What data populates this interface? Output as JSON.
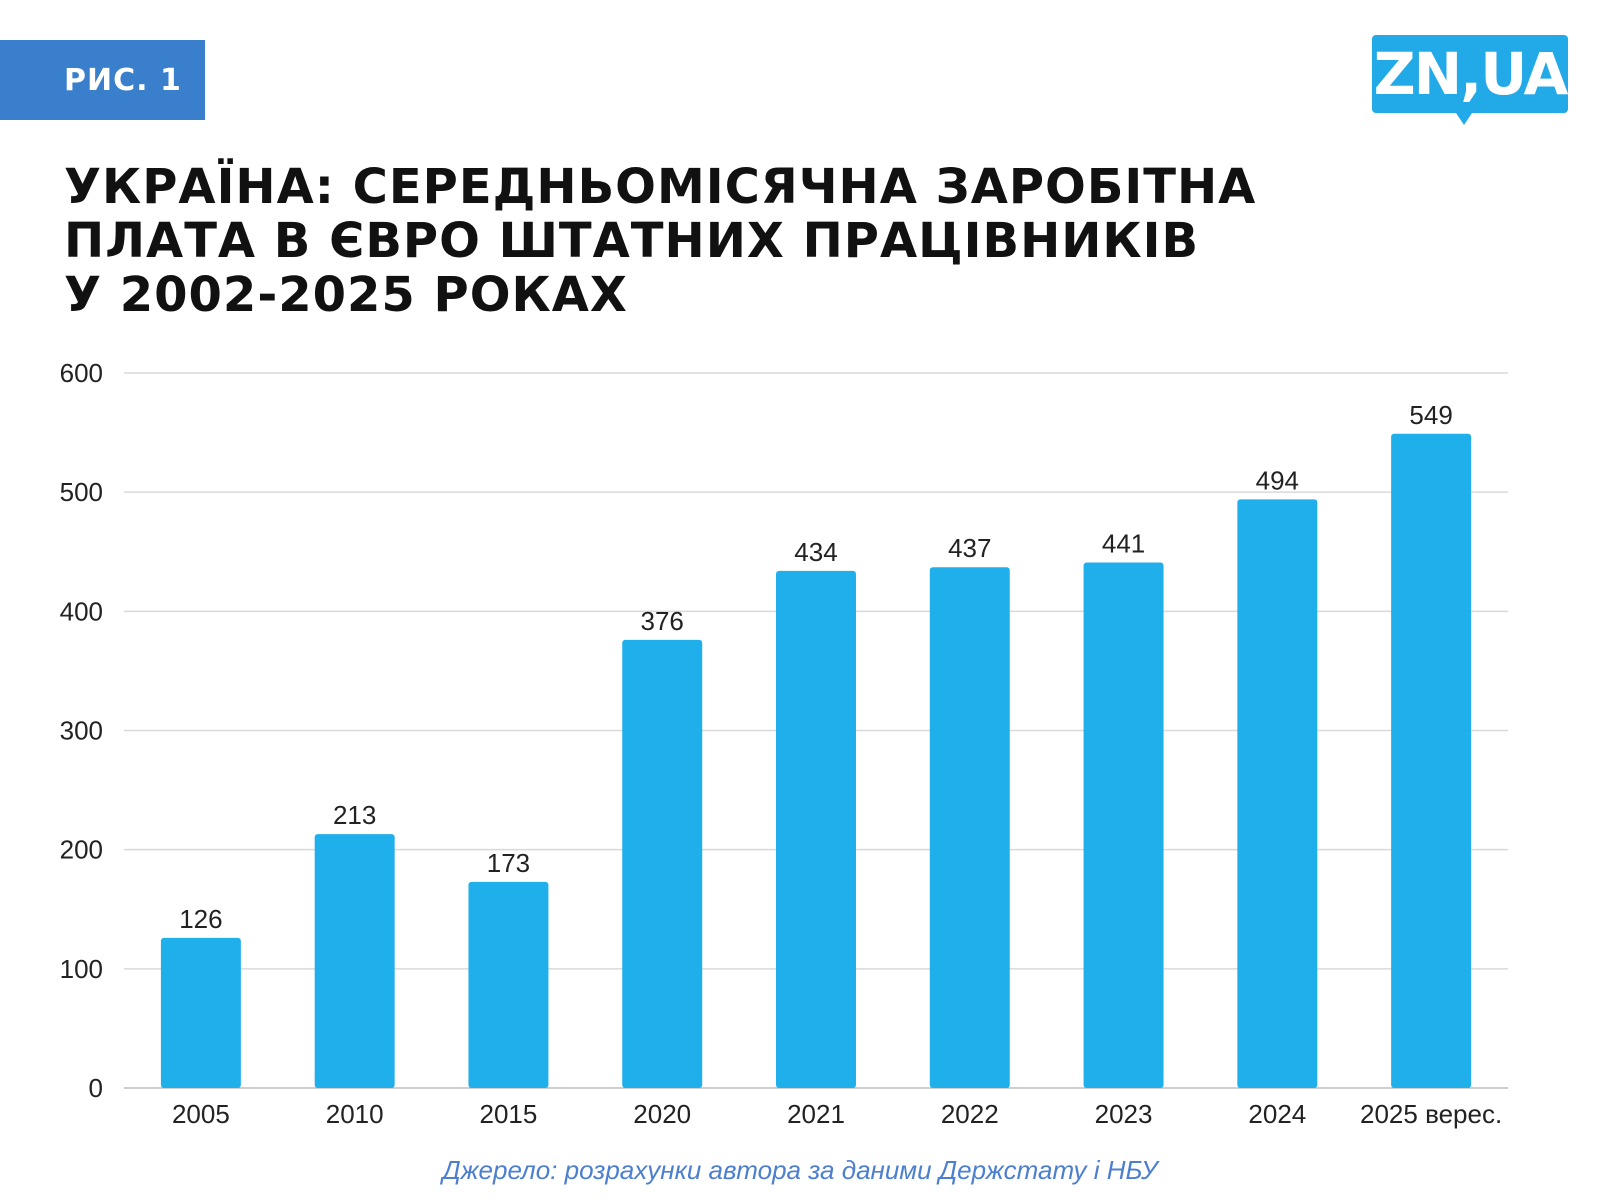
{
  "badge": {
    "label": "РИС. 1"
  },
  "logo": {
    "text": "ZN,UA",
    "color": "#22a9e8"
  },
  "title_lines": [
    "УКРАЇНА: СЕРЕДНЬОМІСЯЧНА ЗАРОБІТНА",
    "ПЛАТА В ЄВРО ШТАТНИХ ПРАЦІВНИКІВ",
    "У 2002-2025 РОКАХ"
  ],
  "source": "Джерело: розрахунки автора за даними Держстату і НБУ",
  "colors": {
    "bar": "#1fafeb",
    "badge": "#3a7fcb",
    "source": "#4c7fcf",
    "grid": "#d9d9d9"
  },
  "chart_data": {
    "type": "bar",
    "title": "УКРАЇНА: СЕРЕДНЬОМІСЯЧНА ЗАРОБІТНА ПЛАТА В ЄВРО ШТАТНИХ ПРАЦІВНИКІВ У 2002-2025 РОКАХ",
    "categories": [
      "2005",
      "2010",
      "2015",
      "2020",
      "2021",
      "2022",
      "2023",
      "2024",
      "2025 верес."
    ],
    "values": [
      126,
      213,
      173,
      376,
      434,
      437,
      441,
      494,
      549
    ],
    "ylim": [
      0,
      600
    ],
    "yticks": [
      0,
      100,
      200,
      300,
      400,
      500,
      600
    ],
    "xlabel": "",
    "ylabel": "",
    "grid": true,
    "data_labels": true
  }
}
